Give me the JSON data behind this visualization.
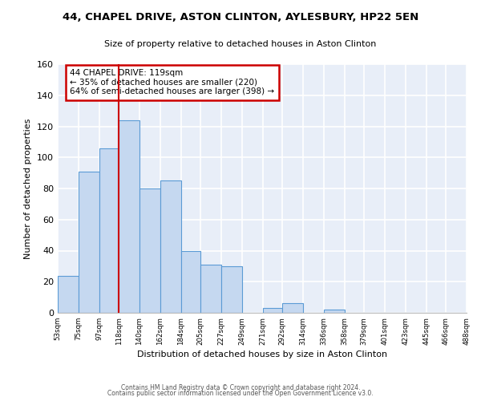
{
  "title": "44, CHAPEL DRIVE, ASTON CLINTON, AYLESBURY, HP22 5EN",
  "subtitle": "Size of property relative to detached houses in Aston Clinton",
  "xlabel": "Distribution of detached houses by size in Aston Clinton",
  "ylabel": "Number of detached properties",
  "bar_color": "#c5d8f0",
  "bar_edge_color": "#5b9bd5",
  "background_color": "#e8eef8",
  "grid_color": "#ffffff",
  "bin_edges": [
    53,
    75,
    97,
    118,
    140,
    162,
    184,
    205,
    227,
    249,
    271,
    292,
    314,
    336,
    358,
    379,
    401,
    423,
    445,
    466,
    488
  ],
  "bin_labels": [
    "53sqm",
    "75sqm",
    "97sqm",
    "118sqm",
    "140sqm",
    "162sqm",
    "184sqm",
    "205sqm",
    "227sqm",
    "249sqm",
    "271sqm",
    "292sqm",
    "314sqm",
    "336sqm",
    "358sqm",
    "379sqm",
    "401sqm",
    "423sqm",
    "445sqm",
    "466sqm",
    "488sqm"
  ],
  "counts": [
    24,
    91,
    106,
    124,
    80,
    85,
    40,
    31,
    30,
    0,
    3,
    6,
    0,
    2,
    0,
    0,
    0,
    0,
    0,
    0
  ],
  "vline_x": 118,
  "vline_color": "#cc0000",
  "annotation_text": "44 CHAPEL DRIVE: 119sqm\n← 35% of detached houses are smaller (220)\n64% of semi-detached houses are larger (398) →",
  "ylim": [
    0,
    160
  ],
  "yticks": [
    0,
    20,
    40,
    60,
    80,
    100,
    120,
    140,
    160
  ],
  "footer1": "Contains HM Land Registry data © Crown copyright and database right 2024.",
  "footer2": "Contains public sector information licensed under the Open Government Licence v3.0."
}
